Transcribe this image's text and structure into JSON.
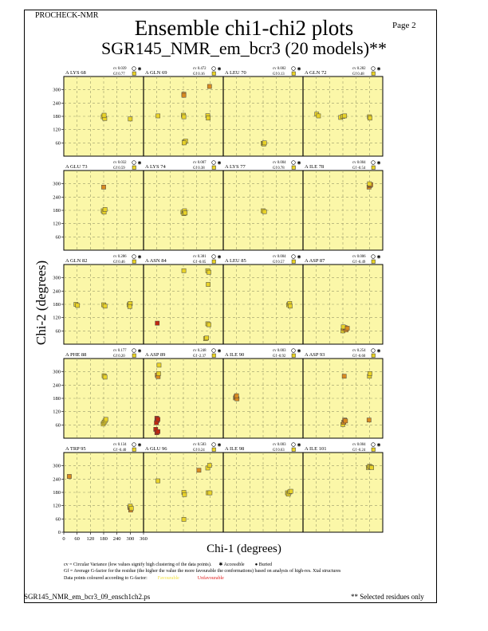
{
  "header": {
    "program": "PROCHECK-NMR",
    "page_label": "Page  2",
    "title": "Ensemble chi1-chi2 plots",
    "subtitle": "SGR145_NMR_em_bcr3 (20 models)**"
  },
  "footer": {
    "filename": "SGR145_NMR_em_bcr3_09_ensch1ch2.ps",
    "note": "** Selected residues only"
  },
  "legend": {
    "line1": "cv = Circular Variance (low values signify high clustering of the data points).",
    "accessible": "Accessible",
    "buried": "Buried",
    "line2": "Gf = Average G-factor for the residue (the higher the value the more favourable the conformations) based on analysis of high-res. Xtal structures",
    "line3": "Data points coloured according to G-factor:",
    "favourable": "Favourable",
    "unfavourable": "Unfavourable"
  },
  "colors": {
    "panel_bg": "#fbf7a8",
    "favourable": "#e8d228",
    "unfavourable": "#c02810",
    "mid": "#d98a20",
    "grid": "#9a9a6a",
    "legend_fav": "#f0e040",
    "legend_unfav": "#e02020"
  },
  "chart_data": {
    "type": "scatter",
    "xlabel": "Chi-1 (degrees)",
    "ylabel": "Chi-2 (degrees)",
    "xlim": [
      0,
      360
    ],
    "ylim": [
      0,
      360
    ],
    "xticks": [
      0,
      60,
      120,
      180,
      240,
      300,
      360
    ],
    "yticks": [
      60,
      120,
      180,
      240,
      300
    ],
    "grid": true,
    "panels": [
      {
        "residue": "A LYS 68",
        "cv": "cv 0.039",
        "gf": "Gf 0.77",
        "points": [
          [
            178,
            178,
            "f"
          ],
          [
            185,
            170,
            "f"
          ],
          [
            182,
            185,
            "f"
          ],
          [
            300,
            168,
            "f"
          ]
        ]
      },
      {
        "residue": "A GLN 69",
        "cv": "cv 0.472",
        "gf": "Gf 0.16",
        "points": [
          [
            65,
            182,
            "f"
          ],
          [
            180,
            185,
            "f"
          ],
          [
            182,
            178,
            "f"
          ],
          [
            182,
            280,
            "m"
          ],
          [
            182,
            275,
            "m"
          ],
          [
            185,
            65,
            "f"
          ],
          [
            190,
            68,
            "f"
          ],
          [
            183,
            60,
            "f"
          ],
          [
            290,
            183,
            "f"
          ],
          [
            292,
            172,
            "f"
          ],
          [
            298,
            315,
            "m"
          ]
        ]
      },
      {
        "residue": "A LEU 70",
        "cv": "cv 0.002",
        "gf": "Gf 0.13",
        "points": [
          [
            180,
            58,
            "f"
          ],
          [
            183,
            55,
            "f"
          ],
          [
            186,
            60,
            "f"
          ]
        ]
      },
      {
        "residue": "A GLN 72",
        "cv": "cv 0.282",
        "gf": "Gf 0.48",
        "points": [
          [
            62,
            190,
            "f"
          ],
          [
            70,
            182,
            "f"
          ],
          [
            170,
            175,
            "f"
          ],
          [
            180,
            180,
            "f"
          ],
          [
            188,
            182,
            "f"
          ],
          [
            300,
            178,
            "f"
          ],
          [
            302,
            172,
            "f"
          ]
        ]
      },
      {
        "residue": "A GLU 73",
        "cv": "cv 0.032",
        "gf": "Gf 0.59",
        "points": [
          [
            178,
            178,
            "f"
          ],
          [
            182,
            172,
            "f"
          ],
          [
            186,
            184,
            "f"
          ],
          [
            180,
            285,
            "m"
          ]
        ]
      },
      {
        "residue": "A LYS 74",
        "cv": "cv 0.007",
        "gf": "Gf 0.38",
        "points": [
          [
            178,
            172,
            "f"
          ],
          [
            182,
            165,
            "f"
          ],
          [
            185,
            178,
            "f"
          ],
          [
            188,
            168,
            "f"
          ]
        ]
      },
      {
        "residue": "A LYS 77",
        "cv": "cv 0.004",
        "gf": "Gf 0.78",
        "points": [
          [
            180,
            178,
            "f"
          ],
          [
            186,
            174,
            "f"
          ]
        ]
      },
      {
        "residue": "A ILE 78",
        "cv": "cv 0.004",
        "gf": "Gf -0.54",
        "points": [
          [
            298,
            285,
            "m"
          ],
          [
            302,
            292,
            "m"
          ],
          [
            306,
            296,
            "m"
          ],
          [
            300,
            300,
            "f"
          ]
        ]
      },
      {
        "residue": "A GLN 82",
        "cv": "cv 0.286",
        "gf": "Gf 0.46",
        "points": [
          [
            55,
            180,
            "f"
          ],
          [
            62,
            175,
            "f"
          ],
          [
            180,
            178,
            "f"
          ],
          [
            186,
            172,
            "f"
          ],
          [
            295,
            178,
            "f"
          ],
          [
            300,
            184,
            "f"
          ],
          [
            298,
            170,
            "f"
          ]
        ]
      },
      {
        "residue": "A ASN 84",
        "cv": "cv 0.381",
        "gf": "Gf -0.05",
        "points": [
          [
            182,
            332,
            "f"
          ],
          [
            290,
            332,
            "f"
          ],
          [
            295,
            325,
            "f"
          ],
          [
            292,
            270,
            "f"
          ],
          [
            290,
            92,
            "f"
          ],
          [
            295,
            88,
            "f"
          ],
          [
            280,
            25,
            "f"
          ],
          [
            285,
            28,
            "f"
          ],
          [
            62,
            95,
            "u"
          ]
        ]
      },
      {
        "residue": "A LEU 85",
        "cv": "cv 0.004",
        "gf": "Gf 0.57",
        "points": [
          [
            295,
            178,
            "f"
          ],
          [
            300,
            184,
            "f"
          ],
          [
            302,
            172,
            "f"
          ]
        ]
      },
      {
        "residue": "A ASP 87",
        "cv": "cv 0.006",
        "gf": "Gf -0.49",
        "points": [
          [
            180,
            60,
            "f"
          ],
          [
            185,
            70,
            "m"
          ],
          [
            190,
            75,
            "m"
          ],
          [
            195,
            65,
            "m"
          ],
          [
            182,
            78,
            "f"
          ],
          [
            200,
            72,
            "m"
          ]
        ]
      },
      {
        "residue": "A PHE 88",
        "cv": "cv 0.177",
        "gf": "Gf 0.20",
        "points": [
          [
            178,
            65,
            "f"
          ],
          [
            182,
            72,
            "f"
          ],
          [
            186,
            78,
            "f"
          ],
          [
            190,
            85,
            "f"
          ],
          [
            182,
            282,
            "f"
          ],
          [
            186,
            276,
            "f"
          ]
        ]
      },
      {
        "residue": "A ASP 89",
        "cv": "cv 0.248",
        "gf": "Gf -2.37",
        "points": [
          [
            60,
            90,
            "u"
          ],
          [
            62,
            80,
            "u"
          ],
          [
            58,
            70,
            "u"
          ],
          [
            65,
            85,
            "u"
          ],
          [
            55,
            40,
            "u"
          ],
          [
            60,
            25,
            "u"
          ],
          [
            65,
            30,
            "u"
          ],
          [
            62,
            285,
            "m"
          ],
          [
            66,
            278,
            "m"
          ],
          [
            68,
            292,
            "f"
          ],
          [
            70,
            330,
            "f"
          ]
        ]
      },
      {
        "residue": "A ILE 90",
        "cv": "cv 0.003",
        "gf": "Gf -0.92",
        "points": [
          [
            55,
            182,
            "m"
          ],
          [
            58,
            188,
            "m"
          ],
          [
            62,
            178,
            "m"
          ],
          [
            60,
            192,
            "m"
          ]
        ]
      },
      {
        "residue": "A ASP 93",
        "cv": "cv 0.254",
        "gf": "Gf -0.60",
        "points": [
          [
            180,
            62,
            "f"
          ],
          [
            184,
            72,
            "m"
          ],
          [
            188,
            82,
            "m"
          ],
          [
            192,
            78,
            "m"
          ],
          [
            186,
            280,
            "m"
          ],
          [
            300,
            280,
            "f"
          ],
          [
            302,
            292,
            "f"
          ],
          [
            298,
            82,
            "m"
          ]
        ]
      },
      {
        "residue": "A TRP 95",
        "cv": "cv 0.134",
        "gf": "Gf -0.40",
        "points": [
          [
            25,
            252,
            "m"
          ],
          [
            298,
            112,
            "m"
          ],
          [
            302,
            100,
            "m"
          ],
          [
            300,
            118,
            "f"
          ],
          [
            305,
            108,
            "f"
          ]
        ]
      },
      {
        "residue": "A GLU 96",
        "cv": "cv 0.583",
        "gf": "Gf 0.24",
        "points": [
          [
            65,
            232,
            "f"
          ],
          [
            182,
            180,
            "f"
          ],
          [
            185,
            170,
            "f"
          ],
          [
            182,
            58,
            "f"
          ],
          [
            250,
            280,
            "m"
          ],
          [
            290,
            290,
            "f"
          ],
          [
            298,
            302,
            "f"
          ],
          [
            292,
            178,
            "f"
          ],
          [
            300,
            178,
            "f"
          ]
        ]
      },
      {
        "residue": "A ILE 98",
        "cv": "cv 0.003",
        "gf": "Gf 0.63",
        "points": [
          [
            290,
            178,
            "f"
          ],
          [
            294,
            172,
            "f"
          ],
          [
            300,
            182,
            "f"
          ],
          [
            305,
            185,
            "f"
          ]
        ]
      },
      {
        "residue": "A ILE 101",
        "cv": "cv 0.004",
        "gf": "Gf -0.24",
        "points": [
          [
            295,
            292,
            "f"
          ],
          [
            300,
            298,
            "f"
          ],
          [
            305,
            295,
            "f"
          ],
          [
            310,
            292,
            "f"
          ]
        ]
      }
    ]
  }
}
